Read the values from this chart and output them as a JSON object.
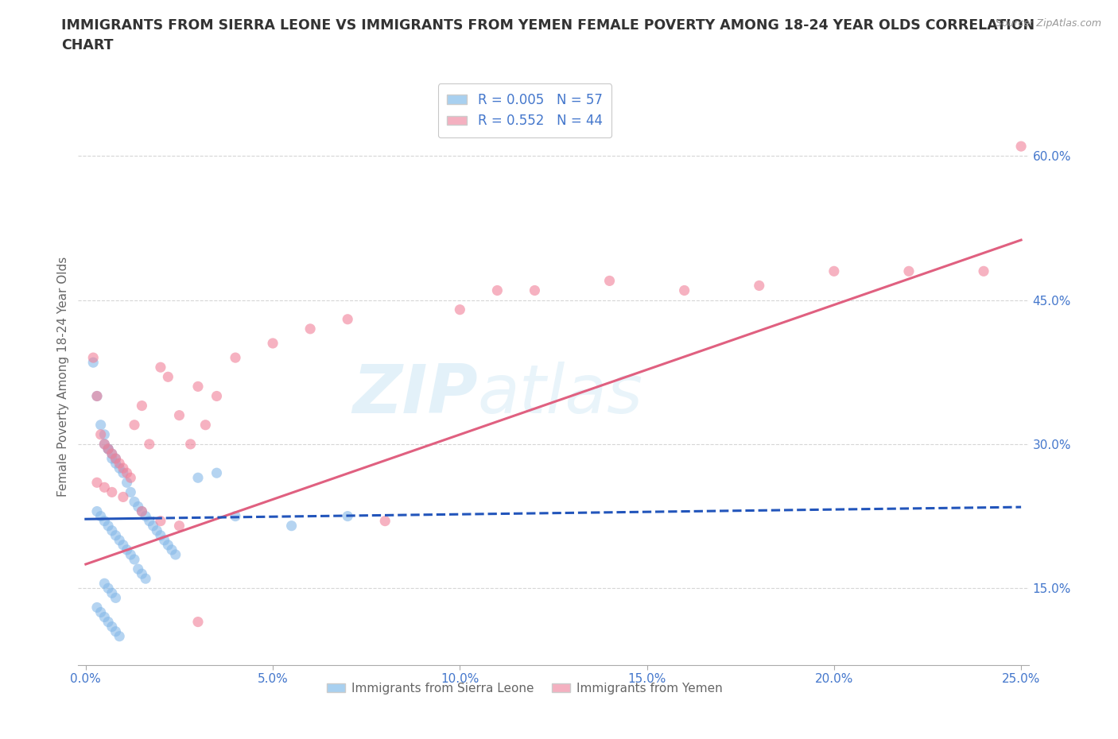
{
  "title_line1": "IMMIGRANTS FROM SIERRA LEONE VS IMMIGRANTS FROM YEMEN FEMALE POVERTY AMONG 18-24 YEAR OLDS CORRELATION",
  "title_line2": "CHART",
  "source": "Source: ZipAtlas.com",
  "ylabel": "Female Poverty Among 18-24 Year Olds",
  "watermark": "ZIPatlas",
  "xlim": [
    -0.002,
    0.252
  ],
  "ylim": [
    0.07,
    0.67
  ],
  "xticks": [
    0.0,
    0.05,
    0.1,
    0.15,
    0.2,
    0.25
  ],
  "xtick_labels": [
    "0.0%",
    "5.0%",
    "10.0%",
    "15.0%",
    "20.0%",
    "25.0%"
  ],
  "yticks_right": [
    0.15,
    0.3,
    0.45,
    0.6
  ],
  "ytick_labels_right": [
    "15.0%",
    "30.0%",
    "45.0%",
    "60.0%"
  ],
  "sl_scatter_color": "#85B8E8",
  "ye_scatter_color": "#F08098",
  "sl_legend_color": "#A8D0F0",
  "ye_legend_color": "#F4B0C0",
  "legend_label_sl": "R = 0.005   N = 57",
  "legend_label_ye": "R = 0.552   N = 44",
  "legend_label_bottom_sl": "Immigrants from Sierra Leone",
  "legend_label_bottom_ye": "Immigrants from Yemen",
  "title_color": "#333333",
  "tick_color": "#4477CC",
  "grid_color": "#CCCCCC",
  "trend_color_sl": "#2255BB",
  "trend_color_ye": "#E06080",
  "background_color": "#FFFFFF",
  "sl_trend_intercept": 0.222,
  "sl_trend_slope": 0.05,
  "ye_trend_intercept": 0.175,
  "ye_trend_slope": 1.35,
  "sierra_leone_x": [
    0.002,
    0.003,
    0.004,
    0.005,
    0.006,
    0.007,
    0.008,
    0.009,
    0.01,
    0.011,
    0.012,
    0.013,
    0.014,
    0.015,
    0.016,
    0.017,
    0.018,
    0.019,
    0.02,
    0.021,
    0.022,
    0.023,
    0.024,
    0.005,
    0.006,
    0.007,
    0.008,
    0.003,
    0.004,
    0.005,
    0.006,
    0.007,
    0.008,
    0.009,
    0.01,
    0.011,
    0.012,
    0.013,
    0.014,
    0.015,
    0.016,
    0.005,
    0.006,
    0.007,
    0.008,
    0.003,
    0.004,
    0.005,
    0.006,
    0.007,
    0.008,
    0.009,
    0.03,
    0.035,
    0.04,
    0.055,
    0.07
  ],
  "sierra_leone_y": [
    0.385,
    0.35,
    0.32,
    0.31,
    0.295,
    0.285,
    0.28,
    0.275,
    0.27,
    0.26,
    0.25,
    0.24,
    0.235,
    0.23,
    0.225,
    0.22,
    0.215,
    0.21,
    0.205,
    0.2,
    0.195,
    0.19,
    0.185,
    0.3,
    0.295,
    0.29,
    0.285,
    0.23,
    0.225,
    0.22,
    0.215,
    0.21,
    0.205,
    0.2,
    0.195,
    0.19,
    0.185,
    0.18,
    0.17,
    0.165,
    0.16,
    0.155,
    0.15,
    0.145,
    0.14,
    0.13,
    0.125,
    0.12,
    0.115,
    0.11,
    0.105,
    0.1,
    0.265,
    0.27,
    0.225,
    0.215,
    0.225
  ],
  "yemen_x": [
    0.002,
    0.003,
    0.004,
    0.005,
    0.006,
    0.007,
    0.008,
    0.009,
    0.01,
    0.011,
    0.012,
    0.013,
    0.015,
    0.017,
    0.02,
    0.022,
    0.025,
    0.028,
    0.03,
    0.032,
    0.035,
    0.04,
    0.05,
    0.06,
    0.07,
    0.08,
    0.1,
    0.11,
    0.12,
    0.14,
    0.16,
    0.18,
    0.2,
    0.22,
    0.24,
    0.003,
    0.005,
    0.007,
    0.01,
    0.015,
    0.02,
    0.025,
    0.03,
    0.25
  ],
  "yemen_y": [
    0.39,
    0.35,
    0.31,
    0.3,
    0.295,
    0.29,
    0.285,
    0.28,
    0.275,
    0.27,
    0.265,
    0.32,
    0.34,
    0.3,
    0.38,
    0.37,
    0.33,
    0.3,
    0.36,
    0.32,
    0.35,
    0.39,
    0.405,
    0.42,
    0.43,
    0.22,
    0.44,
    0.46,
    0.46,
    0.47,
    0.46,
    0.465,
    0.48,
    0.48,
    0.48,
    0.26,
    0.255,
    0.25,
    0.245,
    0.23,
    0.22,
    0.215,
    0.115,
    0.61
  ]
}
